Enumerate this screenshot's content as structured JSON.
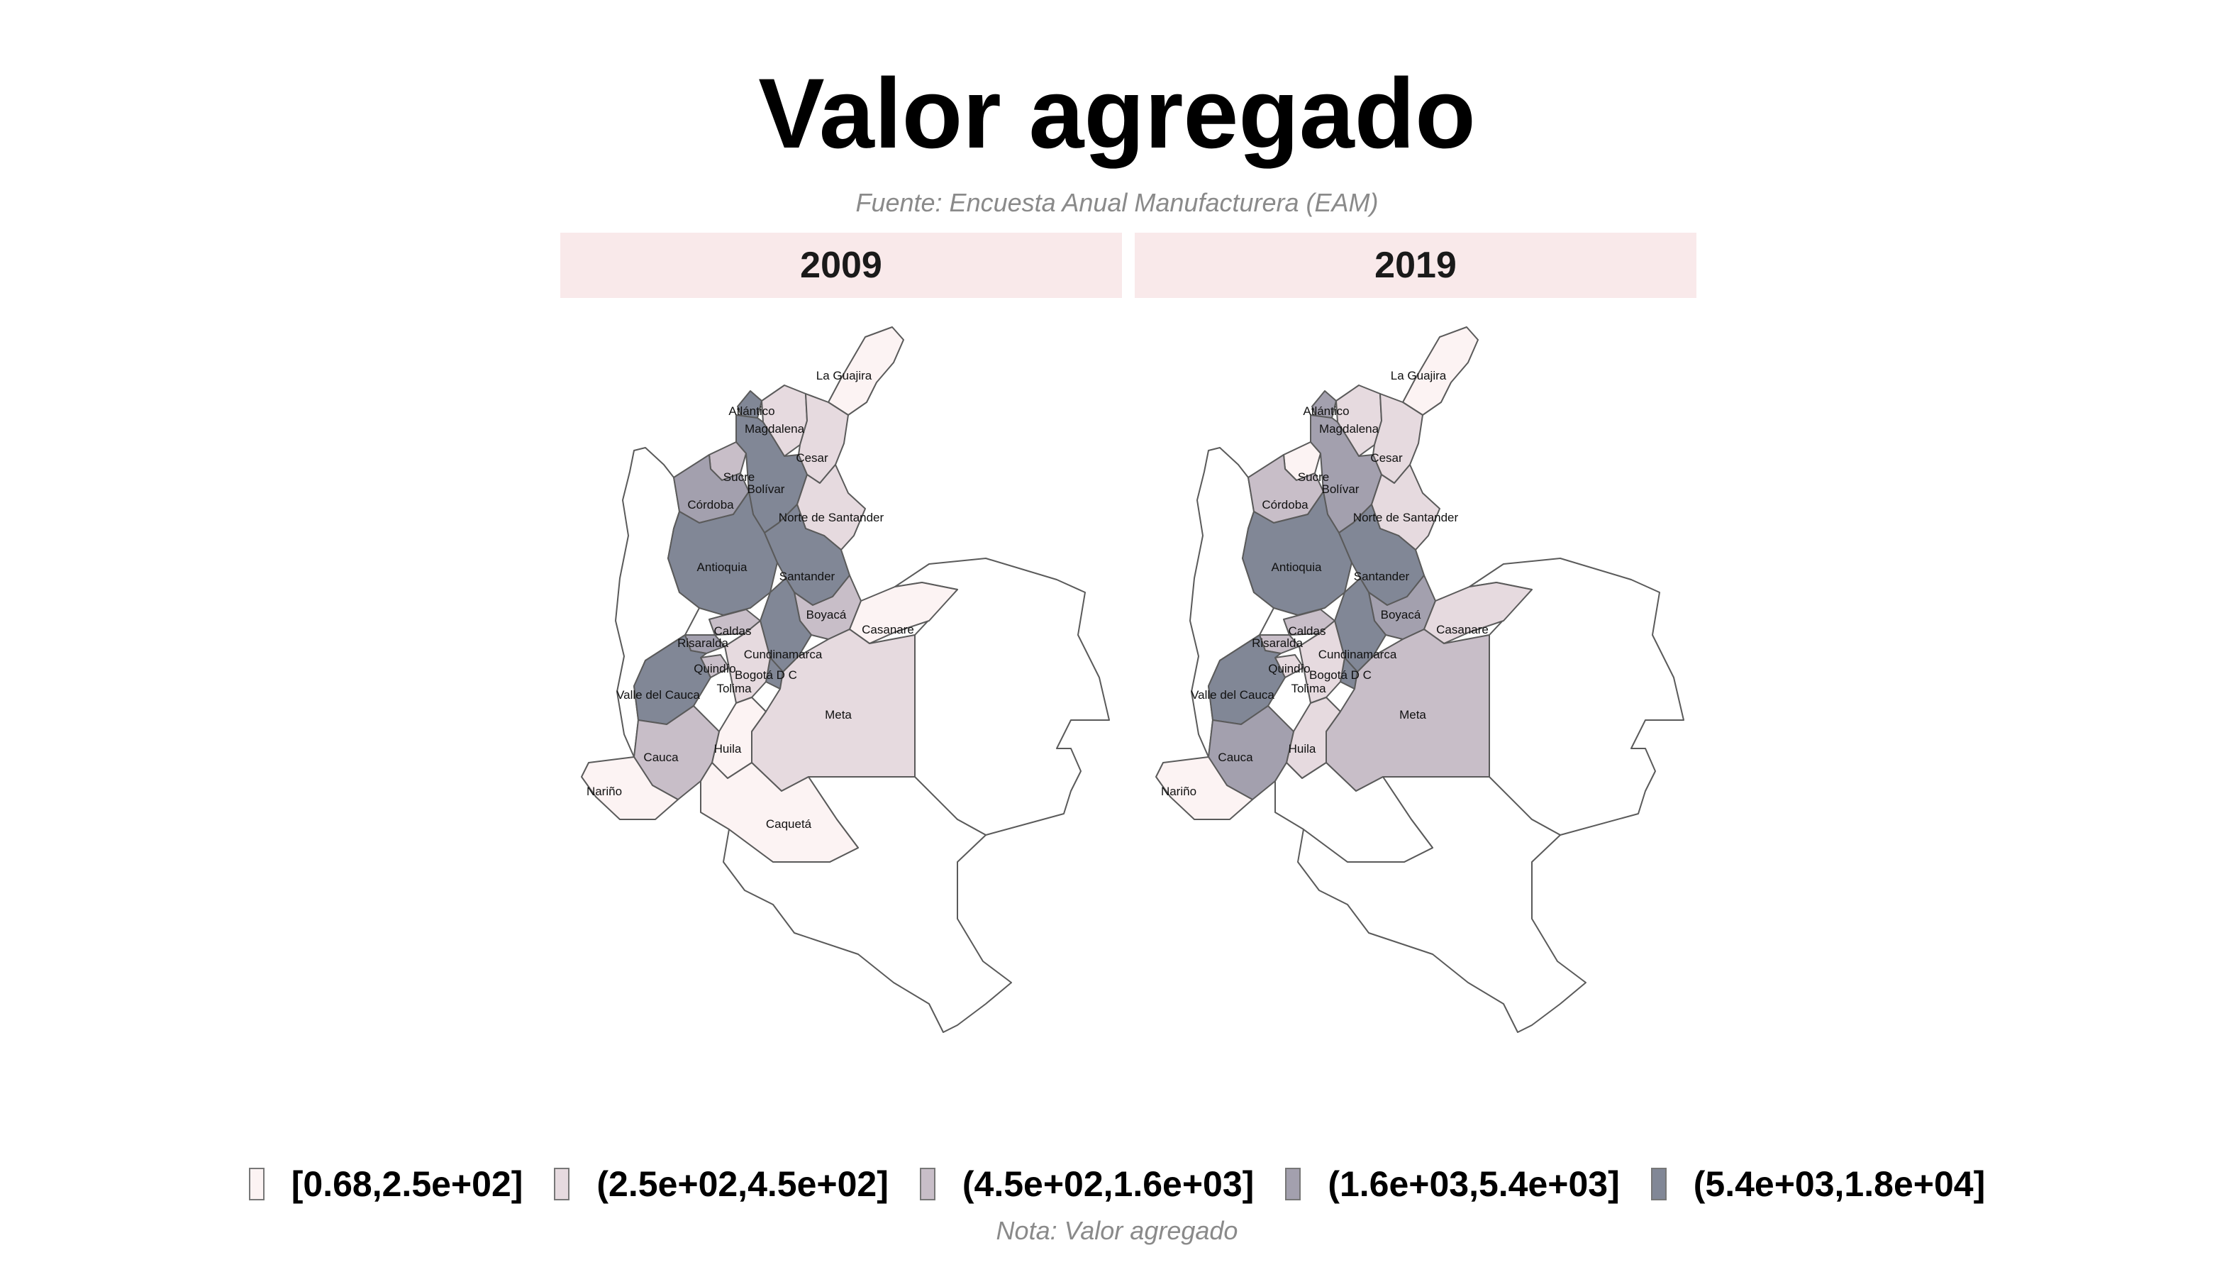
{
  "title": "Valor agregado",
  "subtitle": "Fuente: Encuesta Anual Manufacturera (EAM)",
  "caption": "Nota: Valor agregado",
  "legend": {
    "classes": [
      {
        "label": "[0.68,2.5e+02]",
        "color": "#fcf3f3"
      },
      {
        "label": "(2.5e+02,4.5e+02]",
        "color": "#e6dadf"
      },
      {
        "label": "(4.5e+02,1.6e+03]",
        "color": "#c8bec8"
      },
      {
        "label": "(1.6e+03,5.4e+03]",
        "color": "#a3a0ae"
      },
      {
        "label": "(5.4e+03,1.8e+04]",
        "color": "#818796"
      }
    ]
  },
  "unmapped_color": "#ffffff",
  "panels": [
    {
      "year": "2009",
      "regions": {
        "La Guajira": 0,
        "Atlántico": 4,
        "Magdalena": 1,
        "Cesar": 1,
        "Sucre": 2,
        "Bolívar": 4,
        "Córdoba": 3,
        "Norte de Santander": 1,
        "Antioquia": 4,
        "Santander": 4,
        "Boyacá": 2,
        "Casanare": 0,
        "Caldas": 2,
        "Risaralda": 3,
        "Cundinamarca": 4,
        "Quindío": 2,
        "Bogotá D C": 4,
        "Tolima": 1,
        "Valle del Cauca": 4,
        "Meta": 1,
        "Huila": 0,
        "Cauca": 2,
        "Nariño": 0,
        "Caquetá": 0
      }
    },
    {
      "year": "2019",
      "regions": {
        "La Guajira": 0,
        "Atlántico": 3,
        "Magdalena": 1,
        "Cesar": 1,
        "Sucre": 0,
        "Bolívar": 3,
        "Córdoba": 2,
        "Norte de Santander": 1,
        "Antioquia": 4,
        "Santander": 4,
        "Boyacá": 3,
        "Casanare": 1,
        "Caldas": 2,
        "Risaralda": 2,
        "Cundinamarca": 4,
        "Quindío": 1,
        "Bogotá D C": 4,
        "Tolima": 1,
        "Valle del Cauca": 4,
        "Meta": 2,
        "Huila": 1,
        "Cauca": 3,
        "Nariño": 0
      }
    }
  ]
}
